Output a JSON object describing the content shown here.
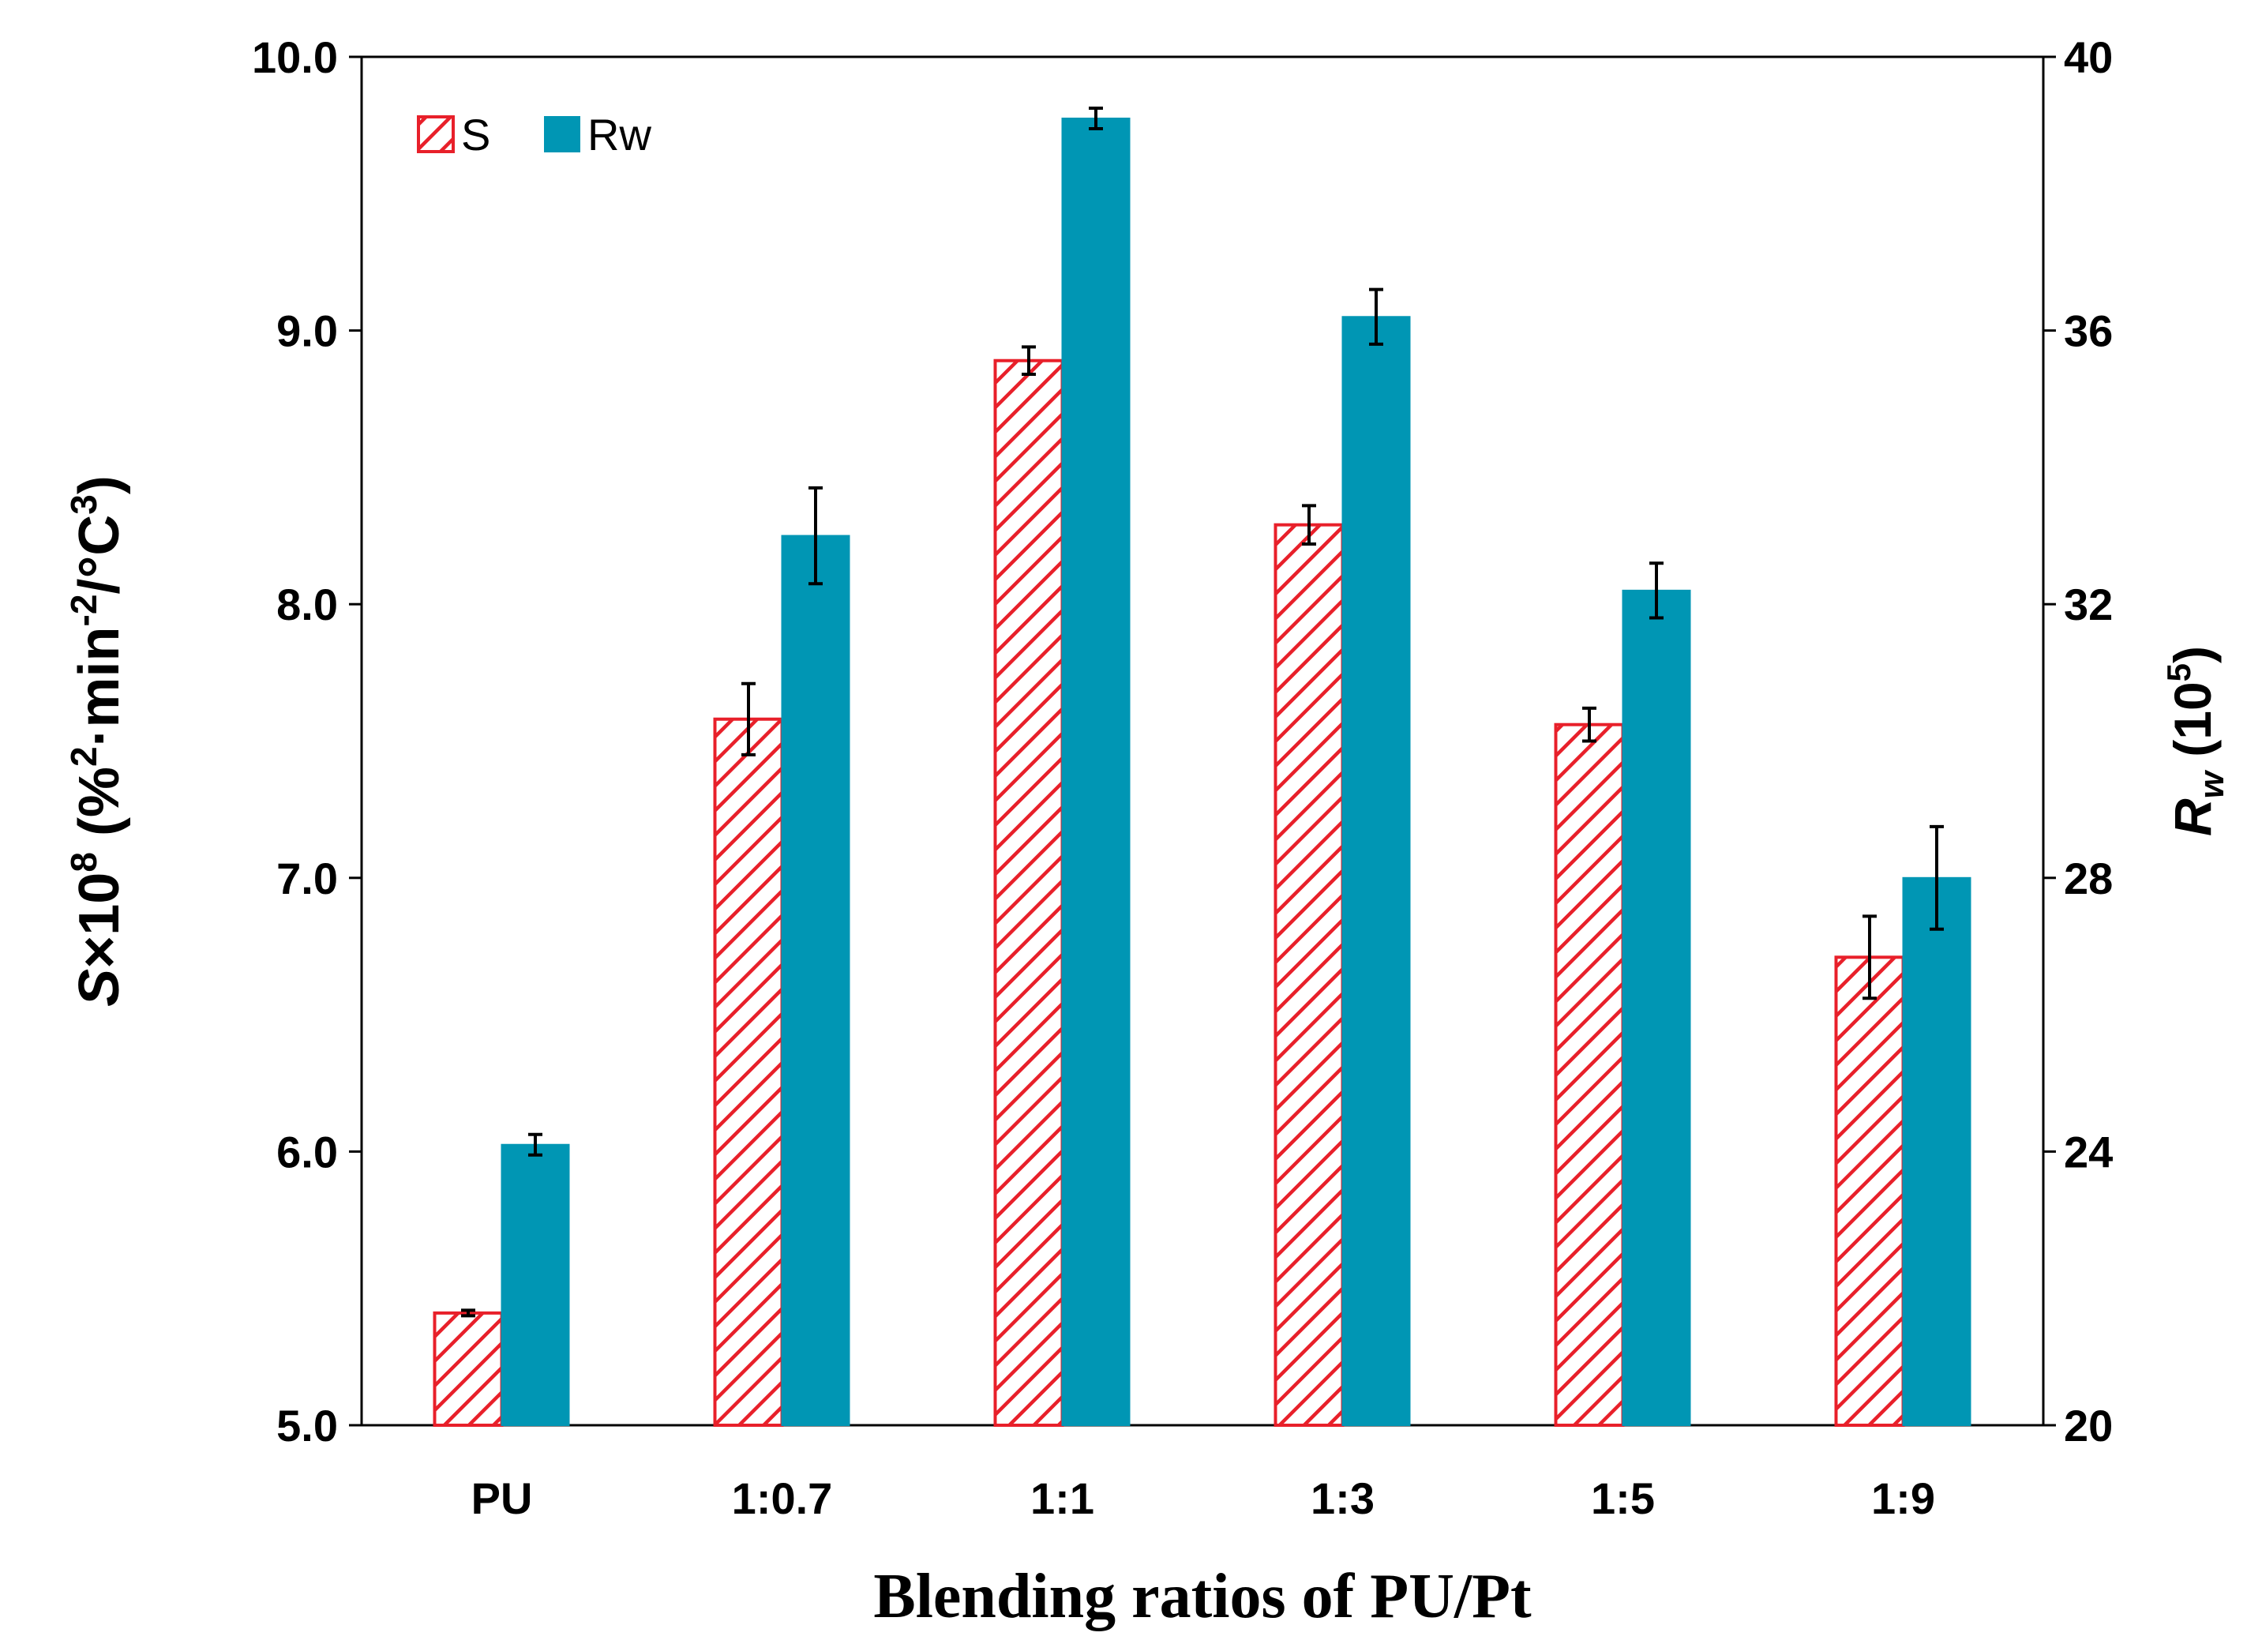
{
  "chart_data": {
    "type": "bar",
    "categories": [
      "PU",
      "1:0.7",
      "1:1",
      "1:3",
      "1:5",
      "1:9"
    ],
    "series": [
      {
        "name": "S",
        "axis": "left",
        "pattern": "hatched",
        "color": "#e8202a",
        "values": [
          5.41,
          7.58,
          8.89,
          8.29,
          7.56,
          6.71
        ],
        "errors": [
          0.01,
          0.13,
          0.05,
          0.07,
          0.06,
          0.15
        ]
      },
      {
        "name": "Rw",
        "axis": "right",
        "pattern": "solid",
        "color": "#0096b4",
        "values": [
          24.1,
          33.0,
          39.1,
          36.2,
          32.2,
          28.0
        ],
        "errors": [
          0.15,
          0.7,
          0.15,
          0.4,
          0.4,
          0.75
        ]
      }
    ],
    "xlabel": "Blending ratios of PU/Pt",
    "ylabel": {
      "symbol": "S",
      "times": "×10",
      "exp": "8",
      "unit_open": " (%",
      "unit_exp1": "2",
      "unit_mid": "·min",
      "unit_exp2": "-2",
      "unit_mid2": "/°C",
      "unit_exp3": "3",
      "unit_close": ")"
    },
    "ylabel_right": {
      "symbol": "R",
      "sub": "w",
      "unit_open": " (10",
      "unit_exp": "5",
      "unit_close": ")"
    },
    "ylim": [
      5.0,
      10.0
    ],
    "yticks": [
      "5.0",
      "6.0",
      "7.0",
      "8.0",
      "9.0",
      "10.0"
    ],
    "ylim_right": [
      20,
      40
    ],
    "yticks_right": [
      "20",
      "24",
      "28",
      "32",
      "36",
      "40"
    ],
    "legend": {
      "position": "top-left",
      "entries": [
        "S",
        "Rw"
      ]
    },
    "grid": false
  }
}
